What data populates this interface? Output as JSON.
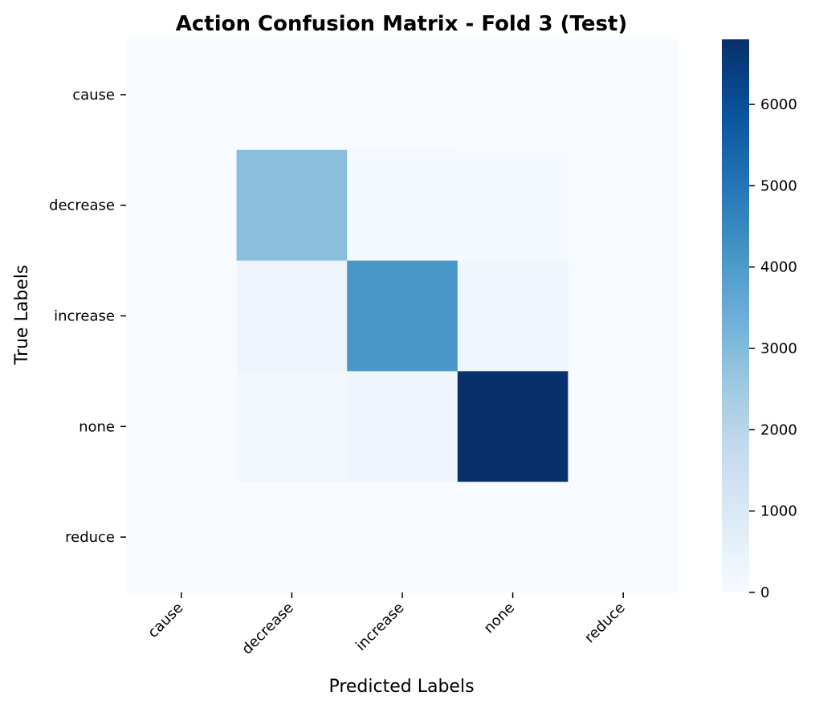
{
  "chart_data": {
    "type": "heatmap",
    "title": "Action Confusion Matrix - Fold 3 (Test)",
    "xlabel": "Predicted Labels",
    "ylabel": "True Labels",
    "x_categories": [
      "cause",
      "decrease",
      "increase",
      "none",
      "reduce"
    ],
    "y_categories": [
      "cause",
      "decrease",
      "increase",
      "none",
      "reduce"
    ],
    "values": [
      [
        0,
        0,
        0,
        0,
        0
      ],
      [
        0,
        2900,
        120,
        60,
        0
      ],
      [
        0,
        350,
        4100,
        250,
        0
      ],
      [
        0,
        200,
        300,
        6800,
        0
      ],
      [
        0,
        0,
        0,
        0,
        0
      ]
    ],
    "colorbar": {
      "min": 0,
      "max": 6800,
      "ticks": [
        0,
        1000,
        2000,
        3000,
        4000,
        5000,
        6000
      ],
      "colormap": "Blues"
    }
  }
}
